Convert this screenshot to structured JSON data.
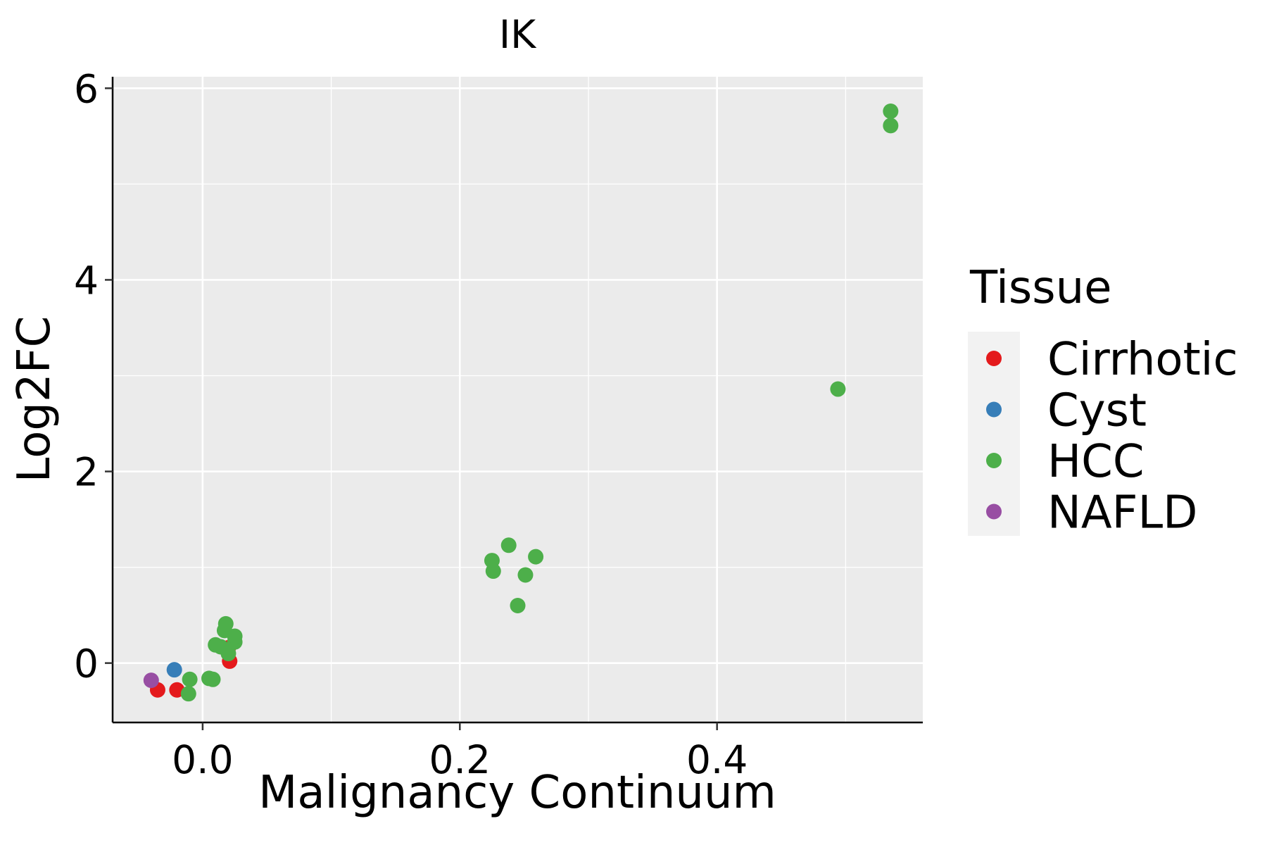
{
  "chart_data": {
    "type": "scatter",
    "title": "IK",
    "xlabel": "Malignancy Continuum",
    "ylabel": "Log2FC",
    "xlim": [
      -0.07,
      0.56
    ],
    "ylim": [
      -0.62,
      6.12
    ],
    "x_ticks": [
      0.0,
      0.2,
      0.4
    ],
    "x_tick_labels": [
      "0.0",
      "0.2",
      "0.4"
    ],
    "y_ticks": [
      0,
      2,
      4,
      6
    ],
    "y_tick_labels": [
      "0",
      "2",
      "4",
      "6"
    ],
    "grid": true,
    "legend": {
      "title": "Tissue",
      "position": "right",
      "entries": [
        {
          "label": "Cirrhotic",
          "color": "#E41A1C"
        },
        {
          "label": "Cyst",
          "color": "#377EB8"
        },
        {
          "label": "HCC",
          "color": "#4DAF4A"
        },
        {
          "label": "NAFLD",
          "color": "#984EA3"
        }
      ]
    },
    "series": [
      {
        "name": "Cirrhotic",
        "color": "#E41A1C",
        "points": [
          {
            "x": -0.035,
            "y": -0.28
          },
          {
            "x": -0.02,
            "y": -0.28
          },
          {
            "x": 0.021,
            "y": 0.02
          },
          {
            "x": 0.02,
            "y": 0.16
          }
        ]
      },
      {
        "name": "Cyst",
        "color": "#377EB8",
        "points": [
          {
            "x": -0.022,
            "y": -0.07
          }
        ]
      },
      {
        "name": "HCC",
        "color": "#4DAF4A",
        "points": [
          {
            "x": -0.01,
            "y": -0.17
          },
          {
            "x": -0.011,
            "y": -0.32
          },
          {
            "x": 0.005,
            "y": -0.16
          },
          {
            "x": 0.008,
            "y": -0.17
          },
          {
            "x": 0.01,
            "y": 0.19
          },
          {
            "x": 0.014,
            "y": 0.17
          },
          {
            "x": 0.017,
            "y": 0.34
          },
          {
            "x": 0.018,
            "y": 0.41
          },
          {
            "x": 0.02,
            "y": 0.1
          },
          {
            "x": 0.025,
            "y": 0.22
          },
          {
            "x": 0.025,
            "y": 0.28
          },
          {
            "x": 0.225,
            "y": 1.07
          },
          {
            "x": 0.226,
            "y": 0.96
          },
          {
            "x": 0.238,
            "y": 1.23
          },
          {
            "x": 0.245,
            "y": 0.6
          },
          {
            "x": 0.251,
            "y": 0.92
          },
          {
            "x": 0.259,
            "y": 1.11
          },
          {
            "x": 0.494,
            "y": 2.86
          },
          {
            "x": 0.535,
            "y": 5.76
          },
          {
            "x": 0.535,
            "y": 5.61
          }
        ]
      },
      {
        "name": "NAFLD",
        "color": "#984EA3",
        "points": [
          {
            "x": -0.04,
            "y": -0.18
          }
        ]
      }
    ]
  }
}
